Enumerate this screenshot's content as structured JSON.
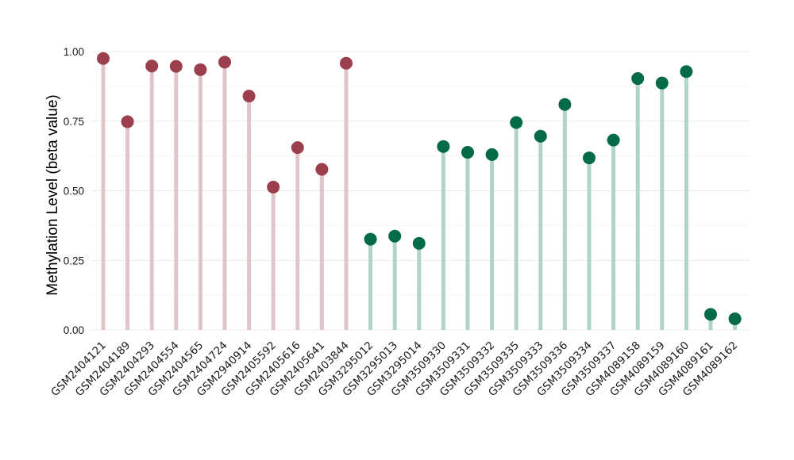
{
  "chart_data": {
    "type": "lollipop",
    "ylabel": "Methylation Level (beta value)",
    "xlabel": "",
    "ylim": [
      0,
      1
    ],
    "yticks": [
      "0.00",
      "0.25",
      "0.50",
      "0.75",
      "1.00"
    ],
    "grid": true,
    "categories": [
      "GSM2404121",
      "GSM2404189",
      "GSM2404293",
      "GSM2404554",
      "GSM2404565",
      "GSM2404724",
      "GSM2940914",
      "GSM2405592",
      "GSM2405616",
      "GSM2405641",
      "GSM2403844",
      "GSM3295012",
      "GSM3295013",
      "GSM3295014",
      "GSM3509330",
      "GSM3509331",
      "GSM3509332",
      "GSM3509335",
      "GSM3509333",
      "GSM3509336",
      "GSM3509334",
      "GSM3509337",
      "GSM4089158",
      "GSM4089159",
      "GSM4089160",
      "GSM4089161",
      "GSM4089162"
    ],
    "values": [
      0.975,
      0.748,
      0.948,
      0.947,
      0.935,
      0.962,
      0.84,
      0.513,
      0.655,
      0.577,
      0.958,
      0.326,
      0.337,
      0.311,
      0.659,
      0.638,
      0.63,
      0.745,
      0.696,
      0.81,
      0.618,
      0.682,
      0.903,
      0.887,
      0.928,
      0.056,
      0.04
    ],
    "groups": [
      0,
      0,
      0,
      0,
      0,
      0,
      0,
      0,
      0,
      0,
      0,
      1,
      1,
      1,
      1,
      1,
      1,
      1,
      1,
      1,
      1,
      1,
      1,
      1,
      1,
      1,
      1
    ],
    "group_colors": {
      "point": [
        "#9b3f4d",
        "#036b45"
      ],
      "stem": [
        "#e0c5ca",
        "#b2d3c7"
      ]
    }
  }
}
